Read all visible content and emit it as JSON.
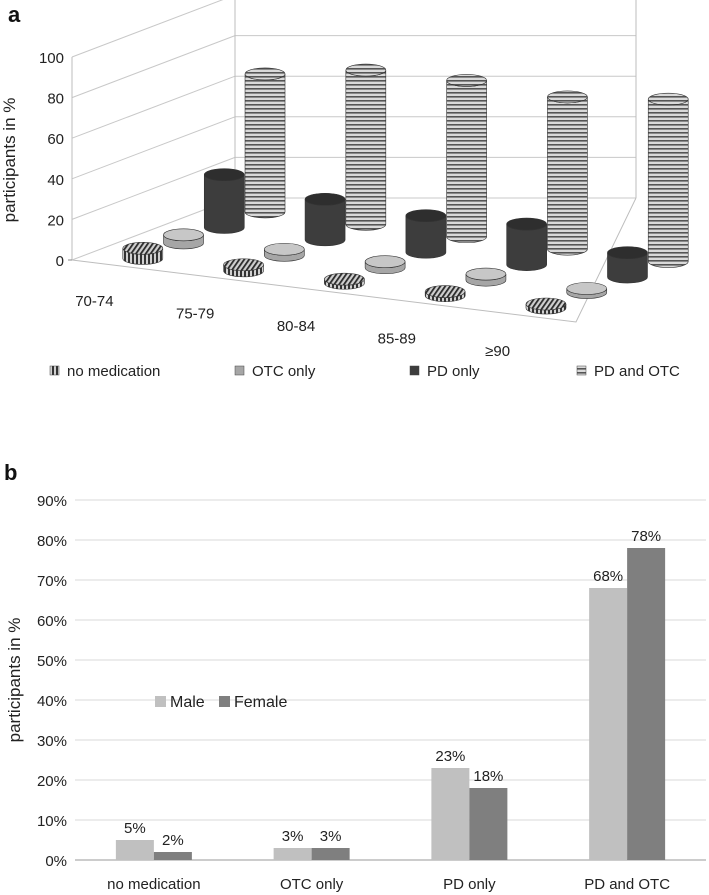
{
  "chart_data": [
    {
      "panel": "a",
      "type": "bar",
      "style": "3d-cylinder",
      "title": "",
      "xlabel": "",
      "ylabel": "participants in %",
      "ylim": [
        0,
        100
      ],
      "yticks": [
        "0",
        "20",
        "40",
        "60",
        "80",
        "100"
      ],
      "categories": [
        "70-74",
        "75-79",
        "80-84",
        "85-89",
        "≥90"
      ],
      "series": [
        {
          "name": "no medication",
          "values": [
            5,
            3,
            2,
            2,
            2
          ]
        },
        {
          "name": "OTC only",
          "values": [
            4,
            3,
            3,
            3,
            2
          ]
        },
        {
          "name": "PD only",
          "values": [
            26,
            20,
            18,
            20,
            12
          ]
        },
        {
          "name": "PD and OTC",
          "values": [
            68,
            76,
            77,
            75,
            80
          ]
        }
      ],
      "legend_position": "bottom"
    },
    {
      "panel": "b",
      "type": "bar",
      "title": "",
      "xlabel": "",
      "ylabel": "participants in %",
      "ylim": [
        0,
        90
      ],
      "yticks": [
        "0%",
        "10%",
        "20%",
        "30%",
        "40%",
        "50%",
        "60%",
        "70%",
        "80%",
        "90%"
      ],
      "categories": [
        "no medication",
        "OTC only",
        "PD only",
        "PD and OTC"
      ],
      "series": [
        {
          "name": "Male",
          "values": [
            5,
            3,
            23,
            68
          ],
          "labels": [
            "5%",
            "3%",
            "23%",
            "68%"
          ]
        },
        {
          "name": "Female",
          "values": [
            2,
            3,
            18,
            78
          ],
          "labels": [
            "2%",
            "3%",
            "18%",
            "78%"
          ]
        }
      ],
      "legend_position": "center-left"
    }
  ],
  "colors": {
    "no_medication": "#555555",
    "otc_only": "#a6a6a6",
    "pd_only": "#3d3d3d",
    "pd_and_otc": "#8c8c8c",
    "male": "#c0c0c0",
    "female": "#7f7f7f"
  }
}
